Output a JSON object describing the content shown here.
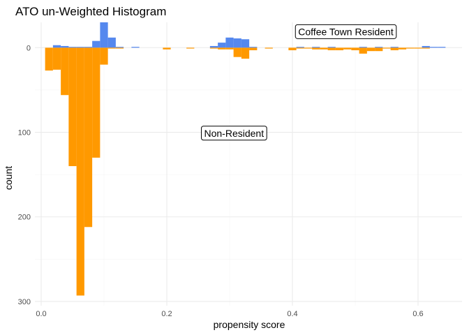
{
  "chart_data": {
    "type": "bar",
    "title": "ATO un-Weighted Histogram",
    "xlabel": "propensity score",
    "ylabel": "count",
    "xlim": [
      -0.01,
      0.67
    ],
    "ylim": [
      -30,
      305
    ],
    "x_ticks": [
      "0.0",
      "0.2",
      "0.4",
      "0.6"
    ],
    "x_tick_values": [
      0.0,
      0.2,
      0.4,
      0.6
    ],
    "y_ticks": [
      "0",
      "100",
      "200",
      "300"
    ],
    "y_tick_values": [
      0,
      100,
      200,
      300
    ],
    "grid": true,
    "bin_width": 0.0125,
    "series": [
      {
        "name": "Coffee Town Resident",
        "color": "#5588ee",
        "bins": [
          [
            0.025,
            3
          ],
          [
            0.0375,
            2
          ],
          [
            0.05,
            1
          ],
          [
            0.0625,
            1
          ],
          [
            0.075,
            1
          ],
          [
            0.0875,
            8
          ],
          [
            0.1,
            30
          ],
          [
            0.1125,
            12
          ],
          [
            0.125,
            1
          ],
          [
            0.15,
            1
          ],
          [
            0.275,
            2
          ],
          [
            0.2875,
            6
          ],
          [
            0.3,
            12
          ],
          [
            0.3125,
            11
          ],
          [
            0.325,
            10
          ],
          [
            0.3375,
            1
          ],
          [
            0.4125,
            1
          ],
          [
            0.4375,
            1
          ],
          [
            0.4625,
            1
          ],
          [
            0.5125,
            1
          ],
          [
            0.5375,
            1
          ],
          [
            0.5625,
            1
          ],
          [
            0.6125,
            2
          ],
          [
            0.625,
            1
          ],
          [
            0.6375,
            1
          ]
        ]
      },
      {
        "name": "Non-Resident",
        "color": "#ff9900",
        "bins": [
          [
            0.0125,
            27
          ],
          [
            0.025,
            26
          ],
          [
            0.0375,
            56
          ],
          [
            0.05,
            140
          ],
          [
            0.0625,
            293
          ],
          [
            0.075,
            212
          ],
          [
            0.0875,
            130
          ],
          [
            0.1,
            20
          ],
          [
            0.1125,
            1
          ],
          [
            0.125,
            1
          ],
          [
            0.2,
            2
          ],
          [
            0.2375,
            1
          ],
          [
            0.275,
            1
          ],
          [
            0.2875,
            2
          ],
          [
            0.3,
            2
          ],
          [
            0.3125,
            11
          ],
          [
            0.325,
            13
          ],
          [
            0.3375,
            3
          ],
          [
            0.3625,
            1
          ],
          [
            0.4,
            3
          ],
          [
            0.4125,
            1
          ],
          [
            0.425,
            1
          ],
          [
            0.4375,
            2
          ],
          [
            0.45,
            2
          ],
          [
            0.4625,
            3
          ],
          [
            0.475,
            3
          ],
          [
            0.4875,
            2
          ],
          [
            0.5,
            3
          ],
          [
            0.5125,
            7
          ],
          [
            0.525,
            4
          ],
          [
            0.5375,
            4
          ],
          [
            0.55,
            1
          ],
          [
            0.5625,
            3
          ],
          [
            0.575,
            2
          ],
          [
            0.5875,
            1
          ],
          [
            0.6,
            1
          ],
          [
            0.6125,
            1
          ]
        ]
      }
    ],
    "annotations": [
      {
        "text": "Coffee Town Resident",
        "x": 0.485,
        "y": -19
      },
      {
        "text": "Non-Resident",
        "x": 0.307,
        "y": 101
      }
    ]
  }
}
